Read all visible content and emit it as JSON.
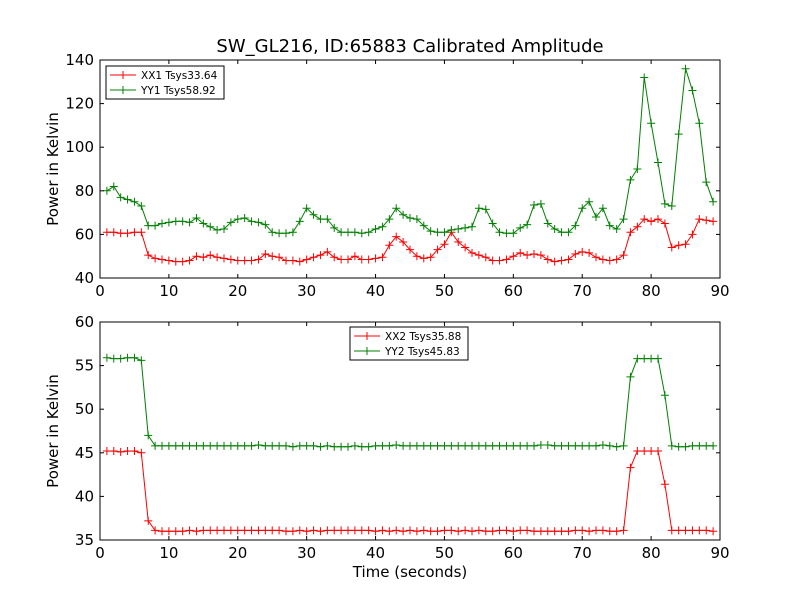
{
  "chart_data": [
    {
      "type": "line",
      "title": "SW_GL216, ID:65883 Calibrated Amplitude",
      "xlabel": "",
      "ylabel": "Power in Kelvin",
      "xlim": [
        0,
        90
      ],
      "ylim": [
        40,
        140
      ],
      "xticks": [
        0,
        10,
        20,
        30,
        40,
        50,
        60,
        70,
        80,
        90
      ],
      "yticks": [
        40,
        60,
        80,
        100,
        120,
        140
      ],
      "legend_position": "top-left",
      "grid": false,
      "series": [
        {
          "name": "XX1 Tsys33.64",
          "color": "#ff0000",
          "x": [
            1,
            2,
            3,
            4,
            5,
            6,
            7,
            8,
            9,
            10,
            11,
            12,
            13,
            14,
            15,
            16,
            17,
            18,
            19,
            20,
            21,
            22,
            23,
            24,
            25,
            26,
            27,
            28,
            29,
            30,
            31,
            32,
            33,
            34,
            35,
            36,
            37,
            38,
            39,
            40,
            41,
            42,
            43,
            44,
            45,
            46,
            47,
            48,
            49,
            50,
            51,
            52,
            53,
            54,
            55,
            56,
            57,
            58,
            59,
            60,
            61,
            62,
            63,
            64,
            65,
            66,
            67,
            68,
            69,
            70,
            71,
            72,
            73,
            74,
            75,
            76,
            77,
            78,
            79,
            80,
            81,
            82,
            83,
            84,
            85,
            86,
            87,
            88,
            89
          ],
          "y": [
            61,
            61,
            60.5,
            60.5,
            61,
            61,
            50.5,
            49,
            48.5,
            48,
            47.5,
            47.5,
            48,
            50,
            49.5,
            50.5,
            49.5,
            49,
            48.5,
            48,
            48,
            48,
            48.5,
            51,
            50,
            49.5,
            48,
            48,
            47.5,
            48.5,
            49.5,
            50.5,
            52,
            49.5,
            48.5,
            48.5,
            50,
            48.5,
            48.5,
            49,
            49.5,
            55,
            59,
            56.5,
            53,
            50,
            49,
            49.5,
            53,
            55.5,
            61,
            56.5,
            54,
            51.5,
            50.5,
            49.5,
            48,
            48,
            48.5,
            50,
            51.5,
            50.5,
            51,
            50.5,
            48.5,
            47.5,
            48,
            48.5,
            51,
            52,
            51.5,
            49.5,
            48.5,
            48,
            48.5,
            50.5,
            61,
            63.5,
            67,
            66,
            67,
            65,
            54,
            55,
            55.5,
            60,
            67,
            66.5,
            66
          ]
        },
        {
          "name": "YY1 Tsys58.92",
          "color": "#008000",
          "x": [
            1,
            2,
            3,
            4,
            5,
            6,
            7,
            8,
            9,
            10,
            11,
            12,
            13,
            14,
            15,
            16,
            17,
            18,
            19,
            20,
            21,
            22,
            23,
            24,
            25,
            26,
            27,
            28,
            29,
            30,
            31,
            32,
            33,
            34,
            35,
            36,
            37,
            38,
            39,
            40,
            41,
            42,
            43,
            44,
            45,
            46,
            47,
            48,
            49,
            50,
            51,
            52,
            53,
            54,
            55,
            56,
            57,
            58,
            59,
            60,
            61,
            62,
            63,
            64,
            65,
            66,
            67,
            68,
            69,
            70,
            71,
            72,
            73,
            74,
            75,
            76,
            77,
            78,
            79,
            80,
            81,
            82,
            83,
            84,
            85,
            86,
            87,
            88,
            89
          ],
          "y": [
            80,
            82,
            77,
            76,
            75,
            73,
            64,
            64,
            65,
            65.5,
            66,
            66,
            65.5,
            67.5,
            65,
            63.5,
            62,
            62.5,
            65.5,
            67,
            67.5,
            66,
            65.5,
            64.5,
            61,
            60.5,
            60.5,
            61,
            66,
            72,
            69,
            67,
            67,
            63,
            61,
            61,
            61,
            60.5,
            61,
            62.5,
            63.5,
            67,
            72,
            69,
            67.5,
            67,
            64,
            61.5,
            61,
            61,
            62,
            62.5,
            63,
            63.5,
            72,
            71.5,
            65,
            61,
            60.5,
            60.5,
            63,
            64.5,
            73.5,
            74,
            65,
            62.5,
            61,
            61,
            64,
            72,
            75,
            68,
            72,
            64,
            62.5,
            67,
            85,
            90,
            132,
            111,
            93,
            74,
            73,
            106,
            136,
            126,
            111,
            84,
            75
          ]
        }
      ]
    },
    {
      "type": "line",
      "title": "",
      "xlabel": "Time (seconds)",
      "ylabel": "Power in Kelvin",
      "xlim": [
        0,
        90
      ],
      "ylim": [
        35,
        60
      ],
      "xticks": [
        0,
        10,
        20,
        30,
        40,
        50,
        60,
        70,
        80,
        90
      ],
      "yticks": [
        35,
        40,
        45,
        50,
        55,
        60
      ],
      "legend_position": "top-center",
      "grid": false,
      "series": [
        {
          "name": "XX2 Tsys35.88",
          "color": "#ff0000",
          "x": [
            1,
            2,
            3,
            4,
            5,
            6,
            7,
            8,
            9,
            10,
            11,
            12,
            13,
            14,
            15,
            16,
            17,
            18,
            19,
            20,
            21,
            22,
            23,
            24,
            25,
            26,
            27,
            28,
            29,
            30,
            31,
            32,
            33,
            34,
            35,
            36,
            37,
            38,
            39,
            40,
            41,
            42,
            43,
            44,
            45,
            46,
            47,
            48,
            49,
            50,
            51,
            52,
            53,
            54,
            55,
            56,
            57,
            58,
            59,
            60,
            61,
            62,
            63,
            64,
            65,
            66,
            67,
            68,
            69,
            70,
            71,
            72,
            73,
            74,
            75,
            76,
            77,
            78,
            79,
            80,
            81,
            82,
            83,
            84,
            85,
            86,
            87,
            88,
            89
          ],
          "y": [
            45.2,
            45.2,
            45.1,
            45.2,
            45.2,
            45.0,
            37.2,
            36.1,
            36.0,
            36.0,
            36.0,
            36.0,
            36.1,
            36.0,
            36.1,
            36.1,
            36.1,
            36.1,
            36.1,
            36.1,
            36.1,
            36.1,
            36.1,
            36.1,
            36.1,
            36.1,
            36.0,
            36.0,
            36.1,
            36.0,
            36.1,
            36.0,
            36.1,
            36.1,
            36.1,
            36.1,
            36.1,
            36.1,
            36.1,
            36.0,
            36.1,
            36.0,
            36.1,
            36.0,
            36.1,
            36.0,
            36.1,
            36.0,
            36.0,
            36.1,
            36.1,
            36.0,
            36.1,
            36.0,
            36.1,
            36.0,
            36.0,
            36.1,
            36.1,
            36.0,
            36.1,
            36.1,
            36.0,
            36.0,
            36.0,
            36.0,
            36.0,
            36.0,
            36.1,
            36.1,
            36.0,
            36.1,
            36.1,
            36.0,
            36.0,
            36.1,
            43.3,
            45.2,
            45.2,
            45.2,
            45.2,
            41.4,
            36.1,
            36.1,
            36.1,
            36.1,
            36.1,
            36.1,
            36.0
          ]
        },
        {
          "name": "YY2 Tsys45.83",
          "color": "#008000",
          "x": [
            1,
            2,
            3,
            4,
            5,
            6,
            7,
            8,
            9,
            10,
            11,
            12,
            13,
            14,
            15,
            16,
            17,
            18,
            19,
            20,
            21,
            22,
            23,
            24,
            25,
            26,
            27,
            28,
            29,
            30,
            31,
            32,
            33,
            34,
            35,
            36,
            37,
            38,
            39,
            40,
            41,
            42,
            43,
            44,
            45,
            46,
            47,
            48,
            49,
            50,
            51,
            52,
            53,
            54,
            55,
            56,
            57,
            58,
            59,
            60,
            61,
            62,
            63,
            64,
            65,
            66,
            67,
            68,
            69,
            70,
            71,
            72,
            73,
            74,
            75,
            76,
            77,
            78,
            79,
            80,
            81,
            82,
            83,
            84,
            85,
            86,
            87,
            88,
            89
          ],
          "y": [
            55.9,
            55.8,
            55.8,
            55.9,
            55.9,
            55.6,
            47.0,
            45.8,
            45.8,
            45.8,
            45.8,
            45.8,
            45.8,
            45.8,
            45.8,
            45.8,
            45.8,
            45.8,
            45.8,
            45.8,
            45.8,
            45.8,
            45.9,
            45.8,
            45.8,
            45.8,
            45.8,
            45.7,
            45.8,
            45.8,
            45.8,
            45.7,
            45.8,
            45.7,
            45.7,
            45.7,
            45.8,
            45.7,
            45.7,
            45.8,
            45.8,
            45.8,
            45.9,
            45.8,
            45.8,
            45.8,
            45.8,
            45.8,
            45.8,
            45.8,
            45.8,
            45.8,
            45.8,
            45.8,
            45.8,
            45.8,
            45.8,
            45.8,
            45.8,
            45.8,
            45.8,
            45.8,
            45.8,
            45.9,
            45.9,
            45.8,
            45.8,
            45.8,
            45.8,
            45.8,
            45.8,
            45.8,
            45.9,
            45.8,
            45.7,
            45.8,
            53.7,
            55.8,
            55.8,
            55.8,
            55.8,
            51.6,
            45.8,
            45.7,
            45.7,
            45.8,
            45.8,
            45.8,
            45.8
          ]
        }
      ]
    }
  ]
}
